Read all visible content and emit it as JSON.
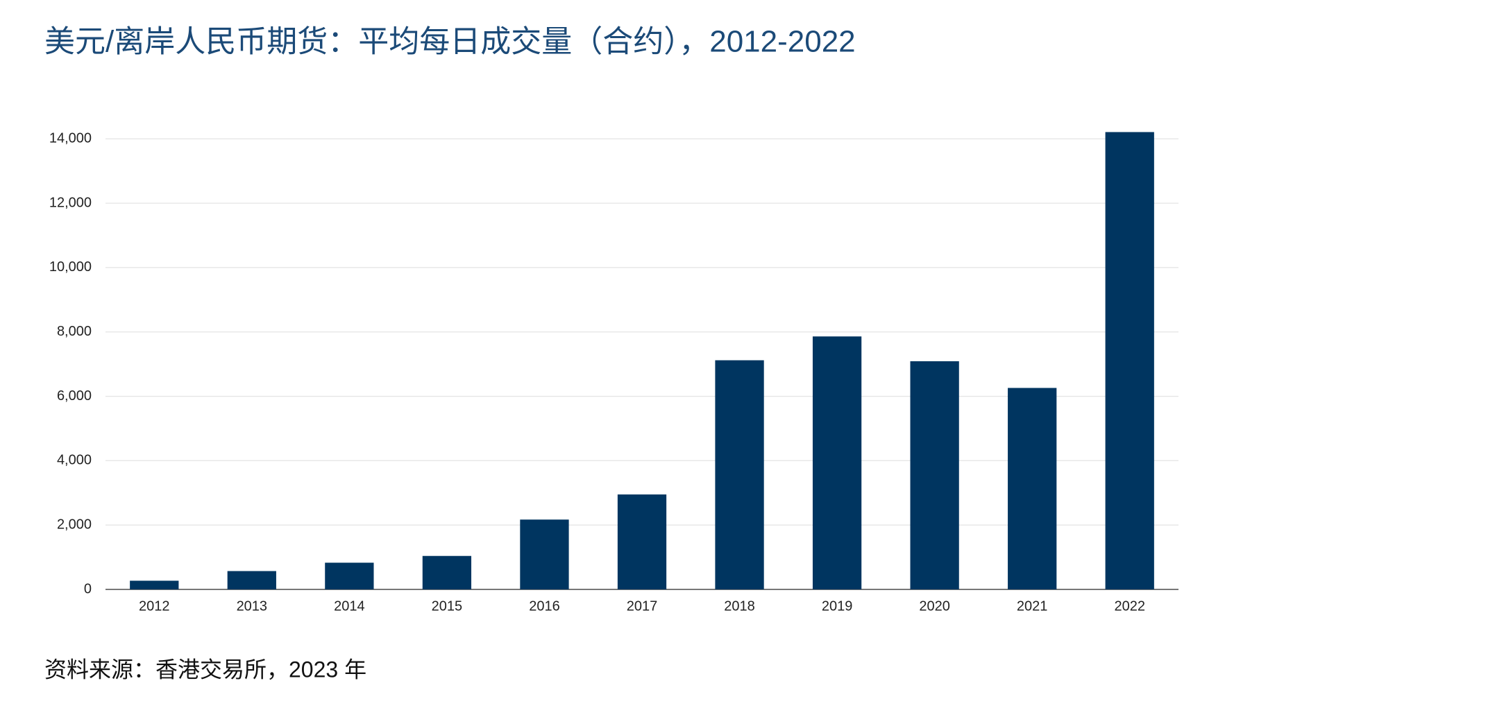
{
  "chart_data": {
    "type": "bar",
    "title": "美元/离岸人民币期货：平均每日成交量（合约），2012-2022",
    "source": "资料来源：香港交易所，2023 年",
    "categories": [
      "2012",
      "2013",
      "2014",
      "2015",
      "2016",
      "2017",
      "2018",
      "2019",
      "2020",
      "2021",
      "2022"
    ],
    "values": [
      270,
      570,
      830,
      1040,
      2170,
      2950,
      7120,
      7860,
      7090,
      6260,
      14210
    ],
    "color": "#003560",
    "ylim": [
      0,
      14500
    ],
    "yticks": [
      0,
      {
        "value": 2000,
        "label": "2,000"
      },
      {
        "value": 4000,
        "label": "4,000"
      },
      {
        "value": 6000,
        "label": "6,000"
      },
      {
        "value": 8000,
        "label": "8,000"
      },
      {
        "value": 10000,
        "label": "10,000"
      },
      {
        "value": 12000,
        "label": "12,000"
      },
      {
        "value": 14000,
        "label": "14,000"
      }
    ],
    "grid": true
  }
}
